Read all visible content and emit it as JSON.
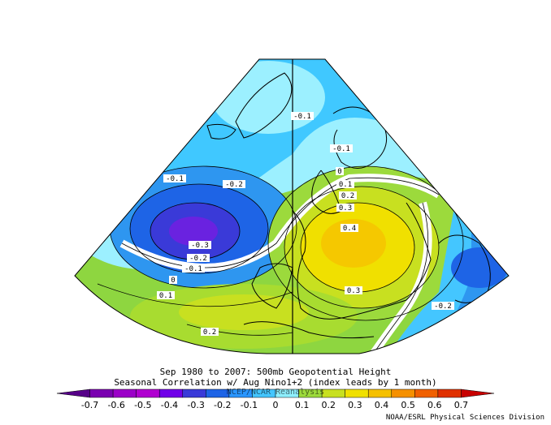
{
  "title": {
    "line1": "Sep 1980 to 2007: 500mb Geopotential Height",
    "line2": "Seasonal Correlation w/ Aug Nino1+2 (index leads by 1 month)",
    "line3": "NCEP/NCAR Reanalysis"
  },
  "credit": "NOAA/ESRL Physical Sciences Division",
  "colorbar": {
    "ticks": [
      "-0.7",
      "-0.6",
      "-0.5",
      "-0.4",
      "-0.3",
      "-0.2",
      "-0.1",
      "0",
      "0.1",
      "0.2",
      "0.3",
      "0.4",
      "0.5",
      "0.6",
      "0.7"
    ],
    "colors": [
      "#560088",
      "#7a00b0",
      "#9b00c8",
      "#b000d0",
      "#7000e8",
      "#3a3ad8",
      "#1e64e6",
      "#2a96ff",
      "#44c6ff",
      "#8ff0ff",
      "#9cda3c",
      "#c8e020",
      "#f0e000",
      "#f5c000",
      "#f59000",
      "#f06000",
      "#e03000",
      "#c80000"
    ]
  },
  "contour_labels": [
    {
      "text": "-0.1",
      "name": "label-n01-north"
    },
    {
      "text": "-0.1",
      "name": "label-n01-scandinavia"
    },
    {
      "text": "0",
      "name": "label-zero-north"
    },
    {
      "text": "0.1",
      "name": "label-01-north"
    },
    {
      "text": "0.2",
      "name": "label-02-north"
    },
    {
      "text": "0.3",
      "name": "label-03-north"
    },
    {
      "text": "0.4",
      "name": "label-04-center"
    },
    {
      "text": "0.3",
      "name": "label-03-south"
    },
    {
      "text": "-0.1",
      "name": "label-n01-west"
    },
    {
      "text": "-0.2",
      "name": "label-n02-atlantic"
    },
    {
      "text": "-0.3",
      "name": "label-n03-low"
    },
    {
      "text": "-0.2",
      "name": "label-n02-low-south"
    },
    {
      "text": "-0.1",
      "name": "label-n01-low-south"
    },
    {
      "text": "0",
      "name": "label-zero-atlantic"
    },
    {
      "text": "0.1",
      "name": "label-01-atlantic"
    },
    {
      "text": "0.2",
      "name": "label-02-africa"
    },
    {
      "text": "-0.2",
      "name": "label-n02-east"
    }
  ]
}
